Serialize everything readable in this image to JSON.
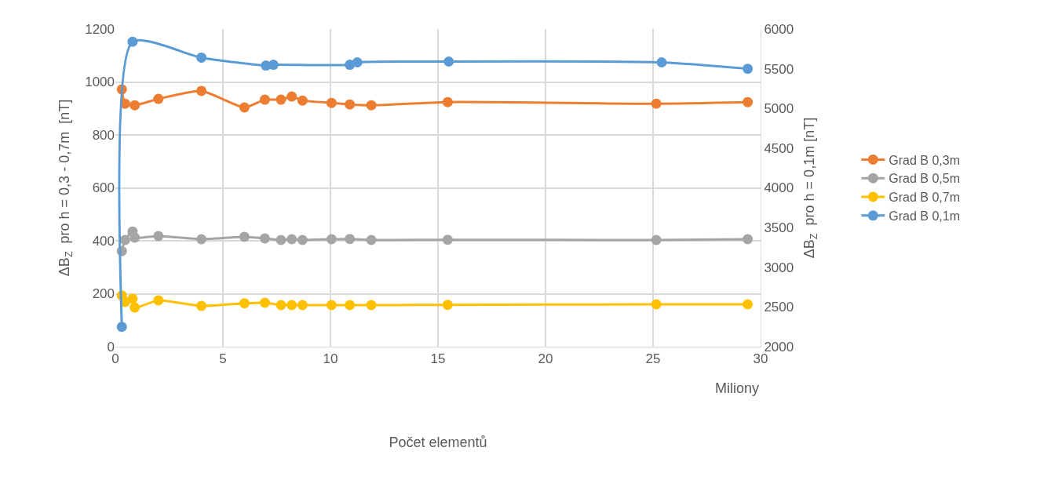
{
  "chart_data": {
    "type": "line",
    "xlabel": "Počet elementů",
    "ylabel": "ΔB$_{Z}$  pro h = 0,3 - 0,7m  [nT]",
    "y2label": "ΔB$_{Z}$  pro h = 0,1m [nT]",
    "annotations": [
      "Miliony"
    ],
    "x": [
      0.3,
      0.45,
      0.8,
      0.9,
      2.0,
      4.0,
      6.0,
      6.95,
      7.7,
      8.2,
      8.7,
      10.05,
      10.9,
      11.9,
      15.45,
      25.15,
      29.4
    ],
    "series": [
      {
        "name": "Grad B 0,3m",
        "color": "#ed7d31",
        "values": [
          972,
          918,
          null,
          912,
          936,
          966,
          904,
          933,
          933,
          945,
          930,
          921,
          915,
          912,
          924,
          918,
          924
        ]
      },
      {
        "name": "Grad B 0,5m",
        "color": "#a5a5a5",
        "values": [
          361,
          403,
          435,
          412,
          418,
          406,
          415,
          409,
          403,
          406,
          403,
          406,
          407,
          403,
          404,
          403,
          406
        ]
      },
      {
        "name": "Grad B 0,7m",
        "color": "#ffc000",
        "values": [
          193,
          169,
          181,
          148,
          175,
          154,
          164,
          166,
          157,
          157,
          157,
          157,
          157,
          157,
          158,
          160,
          160
        ]
      },
      {
        "name": "Grad B 0,1m",
        "color": "#5b9bd5",
        "axis": "y2",
        "x": [
          0.3,
          0.8,
          4.0,
          7.0,
          7.35,
          10.9,
          11.25,
          15.5,
          25.4,
          29.4
        ],
        "values": [
          2250,
          5840,
          5640,
          5540,
          5550,
          5550,
          5580,
          5590,
          5580,
          5500
        ]
      }
    ],
    "xlim": [
      0,
      30
    ],
    "xticks": [
      0,
      5,
      10,
      15,
      20,
      25,
      30
    ],
    "ylim": [
      0,
      1200
    ],
    "yticks": [
      0,
      200,
      400,
      600,
      800,
      1000,
      1200
    ],
    "y2lim": [
      2000,
      6000
    ],
    "y2ticks": [
      2000,
      2500,
      3000,
      3500,
      4000,
      4500,
      5000,
      5500,
      6000
    ],
    "grid": true,
    "legend": "right",
    "marker": "circle",
    "line_style": "solid"
  }
}
